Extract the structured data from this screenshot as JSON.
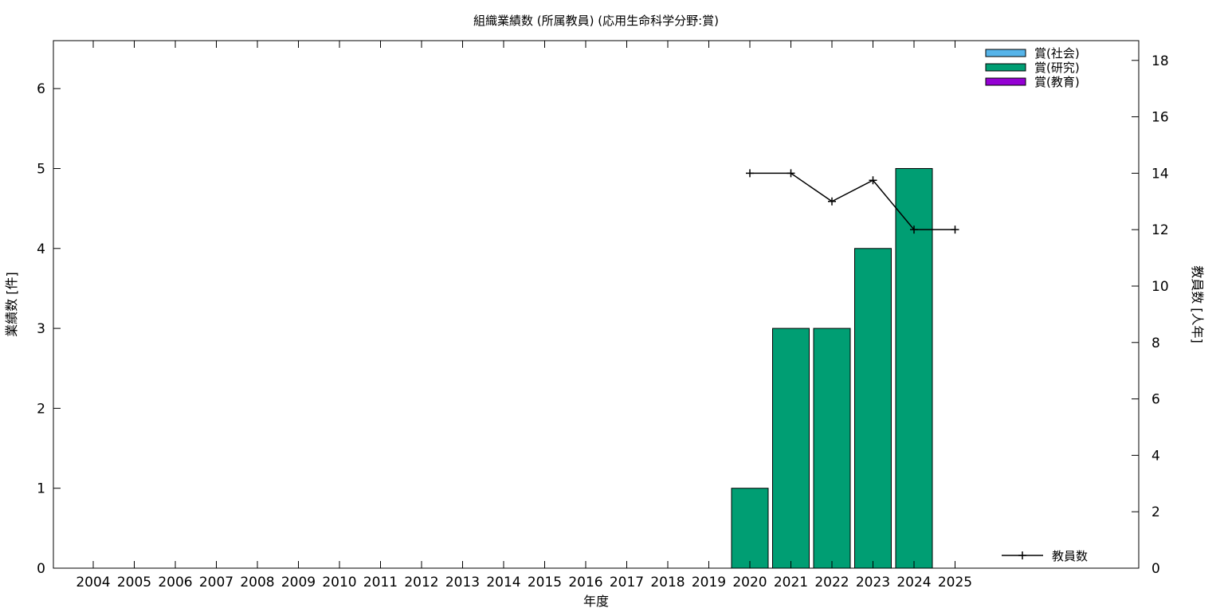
{
  "chart_data": {
    "type": "bar",
    "title": "組織業績数 (所属教員) (応用生命科学分野:賞)",
    "xlabel": "年度",
    "ylabel": "業績数 [件]",
    "y2label": "教員数 [人年]",
    "categories": [
      "2004",
      "2005",
      "2006",
      "2007",
      "2008",
      "2009",
      "2010",
      "2011",
      "2012",
      "2013",
      "2014",
      "2015",
      "2016",
      "2017",
      "2018",
      "2019",
      "2020",
      "2021",
      "2022",
      "2023",
      "2024",
      "2025"
    ],
    "ylim": [
      0,
      6.6
    ],
    "y2lim": [
      0,
      18.7
    ],
    "yticks": [
      0,
      1,
      2,
      3,
      4,
      5,
      6
    ],
    "y2ticks": [
      0,
      2,
      4,
      6,
      8,
      10,
      12,
      14,
      16,
      18
    ],
    "grid": false,
    "legend_position": "top-right",
    "series": [
      {
        "name": "賞(社会)",
        "kind": "bar",
        "color": "#56b4e9",
        "values": [
          0,
          0,
          0,
          0,
          0,
          0,
          0,
          0,
          0,
          0,
          0,
          0,
          0,
          0,
          0,
          0,
          0,
          0,
          0,
          0,
          0,
          0
        ]
      },
      {
        "name": "賞(研究)",
        "kind": "bar",
        "color": "#009e73",
        "values": [
          0,
          0,
          0,
          0,
          0,
          0,
          0,
          0,
          0,
          0,
          0,
          0,
          0,
          0,
          0,
          0,
          1,
          3,
          3,
          4,
          5,
          0
        ]
      },
      {
        "name": "賞(教育)",
        "kind": "bar",
        "color": "#9400d3",
        "values": [
          0,
          0,
          0,
          0,
          0,
          0,
          0,
          0,
          0,
          0,
          0,
          0,
          0,
          0,
          0,
          0,
          0,
          0,
          0,
          0,
          0,
          0
        ]
      }
    ],
    "line_series": {
      "name": "教員数",
      "axis": "y2",
      "color": "#000000",
      "x": [
        "2020",
        "2021",
        "2022",
        "2023",
        "2024",
        "2025"
      ],
      "values": [
        14,
        14,
        13,
        13.75,
        12,
        12
      ]
    }
  }
}
